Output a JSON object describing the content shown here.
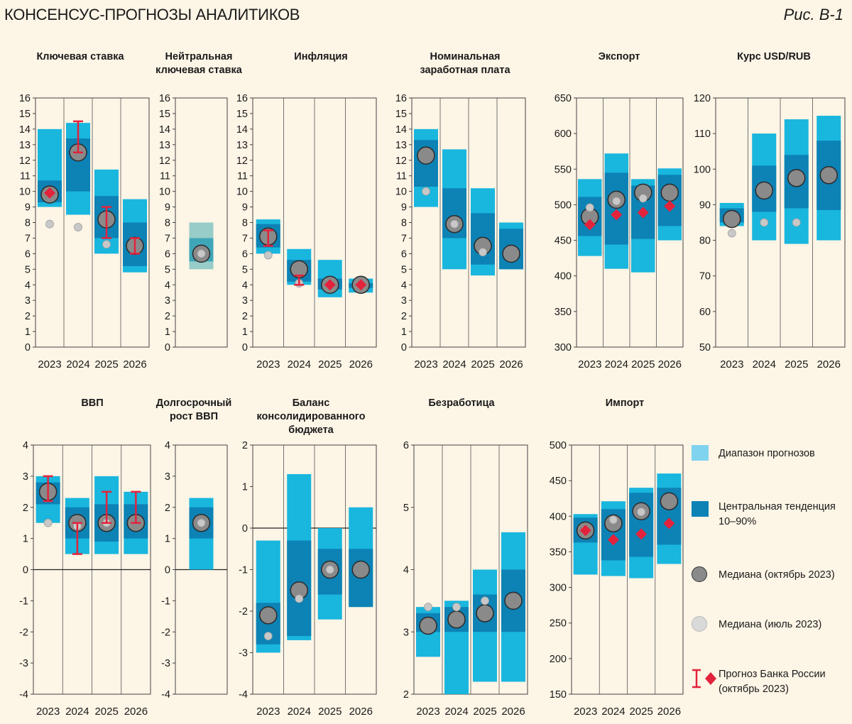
{
  "header": {
    "title": "КОНСЕНСУС-ПРОГНОЗЫ АНАЛИТИКОВ",
    "figure": "Рис. В-1"
  },
  "colors": {
    "background": "#fdf5e6",
    "range": "#19b6de",
    "central": "#0d82b5",
    "range_light": "#97ccc9",
    "central_light": "#3fa6b8",
    "median_oct": "#8a8a8a",
    "median_jul": "#c8c8c8",
    "cbr": "#e3223b"
  },
  "legend": {
    "range": "Диапазон прогнозов",
    "central": "Центральная тенденция 10–90%",
    "median_oct": "Медиана (октябрь 2023)",
    "median_jul": "Медиана (июль 2023)",
    "cbr": "Прогноз Банка России (октябрь 2023)"
  },
  "chart_data": [
    {
      "id": "key-rate",
      "type": "bar",
      "title": [
        "Ключевая ставка"
      ],
      "categories": [
        "2023",
        "2024",
        "2025",
        "2026"
      ],
      "ylim": [
        0,
        16
      ],
      "yticks": [
        "0",
        "1",
        "2",
        "3",
        "4",
        "5",
        "6",
        "7",
        "8",
        "9",
        "10",
        "11",
        "12",
        "13",
        "14",
        "15",
        "16"
      ],
      "range": [
        [
          9,
          14
        ],
        [
          8.5,
          14.4
        ],
        [
          6,
          11.4
        ],
        [
          4.8,
          9.5
        ]
      ],
      "central": [
        [
          9.3,
          10.7
        ],
        [
          10,
          13.4
        ],
        [
          7,
          9.7
        ],
        [
          5.2,
          8
        ]
      ],
      "median_oct": [
        9.8,
        12.5,
        8.2,
        6.5
      ],
      "median_jul": [
        7.9,
        7.7,
        6.6,
        null
      ],
      "cbr_point": [
        9.9,
        null,
        null,
        null
      ],
      "cbr_range": [
        null,
        [
          12.5,
          14.5
        ],
        [
          7,
          9
        ],
        [
          6,
          7
        ]
      ]
    },
    {
      "id": "neutral-rate",
      "type": "bar",
      "title": [
        "Нейтральная",
        "ключевая ставка"
      ],
      "categories": [
        ""
      ],
      "ylim": [
        0,
        16
      ],
      "yticks": [
        "0",
        "1",
        "2",
        "3",
        "4",
        "5",
        "6",
        "7",
        "8",
        "9",
        "10",
        "11",
        "12",
        "13",
        "14",
        "15",
        "16"
      ],
      "range": [
        [
          5,
          8
        ]
      ],
      "central": [
        [
          5.5,
          7
        ]
      ],
      "light": true,
      "median_oct": [
        6
      ],
      "median_jul": [
        6
      ]
    },
    {
      "id": "inflation",
      "type": "bar",
      "title": [
        "Инфляция"
      ],
      "categories": [
        "2023",
        "2024",
        "2025",
        "2026"
      ],
      "ylim": [
        0,
        16
      ],
      "yticks": [
        "0",
        "1",
        "2",
        "3",
        "4",
        "5",
        "6",
        "7",
        "8",
        "9",
        "10",
        "11",
        "12",
        "13",
        "14",
        "15",
        "16"
      ],
      "range": [
        [
          6,
          8.2
        ],
        [
          4,
          6.3
        ],
        [
          3.2,
          5.6
        ],
        [
          3.5,
          4.4
        ]
      ],
      "central": [
        [
          6.4,
          7.9
        ],
        [
          4.2,
          5.6
        ],
        [
          3.7,
          4.4
        ],
        [
          3.8,
          4.1
        ]
      ],
      "median_oct": [
        7.1,
        5,
        4,
        4
      ],
      "median_jul": [
        5.9,
        4.1,
        4,
        4
      ],
      "cbr_point": [
        null,
        null,
        4,
        4
      ],
      "cbr_range": [
        [
          6.5,
          7.5
        ],
        [
          4,
          4.6
        ],
        null,
        null
      ]
    },
    {
      "id": "nominal-wage",
      "type": "bar",
      "title": [
        "Номинальная",
        "заработная плата"
      ],
      "categories": [
        "2023",
        "2024",
        "2025",
        "2026"
      ],
      "ylim": [
        0,
        16
      ],
      "yticks": [
        "0",
        "1",
        "2",
        "3",
        "4",
        "5",
        "6",
        "7",
        "8",
        "9",
        "10",
        "11",
        "12",
        "13",
        "14",
        "15",
        "16"
      ],
      "range": [
        [
          9,
          14
        ],
        [
          5,
          12.7
        ],
        [
          4.6,
          10.2
        ],
        [
          5,
          8
        ]
      ],
      "central": [
        [
          10.3,
          13.3
        ],
        [
          7,
          10.2
        ],
        [
          5.3,
          8.6
        ],
        [
          5,
          7.6
        ]
      ],
      "median_oct": [
        12.3,
        7.9,
        6.5,
        6
      ],
      "median_jul": [
        10,
        7.9,
        6.1,
        null
      ]
    },
    {
      "id": "export",
      "type": "bar",
      "title": [
        "Экспорт"
      ],
      "categories": [
        "2023",
        "2024",
        "2025",
        "2026"
      ],
      "ylim": [
        300,
        650
      ],
      "yticks": [
        "300",
        "350",
        "400",
        "450",
        "500",
        "550",
        "600",
        "650"
      ],
      "range": [
        [
          428,
          536
        ],
        [
          410,
          572
        ],
        [
          405,
          536
        ],
        [
          450,
          551
        ]
      ],
      "central": [
        [
          456,
          511
        ],
        [
          444,
          545
        ],
        [
          452,
          527
        ],
        [
          470,
          542
        ]
      ],
      "median_oct": [
        483,
        507,
        517,
        517
      ],
      "median_jul": [
        496,
        505,
        509,
        null
      ],
      "cbr_point": [
        472,
        486,
        489,
        498
      ]
    },
    {
      "id": "usd-rub",
      "type": "bar",
      "title": [
        "Курс USD/RUB"
      ],
      "categories": [
        "2023",
        "2024",
        "2025",
        "2026"
      ],
      "ylim": [
        50,
        120
      ],
      "yticks": [
        "50",
        "60",
        "70",
        "80",
        "90",
        "100",
        "110",
        "120"
      ],
      "range": [
        [
          84,
          90.5
        ],
        [
          80,
          110
        ],
        [
          79,
          114
        ],
        [
          80,
          115
        ]
      ],
      "central": [
        [
          85,
          89
        ],
        [
          88,
          101
        ],
        [
          89,
          104
        ],
        [
          88.5,
          108
        ]
      ],
      "median_oct": [
        86,
        94,
        97.5,
        98.3
      ],
      "median_jul": [
        82,
        85,
        85,
        null
      ]
    },
    {
      "id": "gdp",
      "type": "bar",
      "title": [
        "ВВП"
      ],
      "categories": [
        "2023",
        "2024",
        "2025",
        "2026"
      ],
      "ylim": [
        -4,
        4
      ],
      "yticks": [
        "-4",
        "-3",
        "-2",
        "-1",
        "0",
        "1",
        "2",
        "3",
        "4"
      ],
      "range": [
        [
          1.5,
          3
        ],
        [
          0.5,
          2.3
        ],
        [
          0.5,
          3
        ],
        [
          0.5,
          2.5
        ]
      ],
      "central": [
        [
          2.1,
          2.8
        ],
        [
          1,
          2
        ],
        [
          0.9,
          2.1
        ],
        [
          1,
          2.1
        ]
      ],
      "median_oct": [
        2.5,
        1.5,
        1.5,
        1.5
      ],
      "median_jul": [
        1.5,
        1.4,
        1.5,
        null
      ],
      "cbr_range": [
        [
          2.2,
          3
        ],
        [
          0.5,
          1.5
        ],
        [
          1.5,
          2.5
        ],
        [
          1.5,
          2.5
        ]
      ]
    },
    {
      "id": "long-growth",
      "type": "bar",
      "title": [
        "Долгосрочный",
        "рост ВВП"
      ],
      "categories": [
        ""
      ],
      "ylim": [
        -4,
        4
      ],
      "yticks": [
        "-4",
        "-3",
        "-2",
        "-1",
        "0",
        "1",
        "2",
        "3",
        "4"
      ],
      "range": [
        [
          0,
          2.3
        ]
      ],
      "central": [
        [
          1,
          2
        ]
      ],
      "median_oct": [
        1.5
      ],
      "median_jul": [
        1.5
      ]
    },
    {
      "id": "budget",
      "type": "bar",
      "title": [
        "Баланс",
        "консолидированного",
        "бюджета"
      ],
      "categories": [
        "2023",
        "2024",
        "2025",
        "2026"
      ],
      "ylim": [
        -4,
        2
      ],
      "yticks": [
        "-4",
        "-3",
        "-2",
        "-1",
        "0",
        "1",
        "2"
      ],
      "range": [
        [
          -3,
          -0.3
        ],
        [
          -2.7,
          1.3
        ],
        [
          -2.2,
          0
        ],
        [
          -1.9,
          0.5
        ]
      ],
      "central": [
        [
          -2.8,
          -1.8
        ],
        [
          -2.6,
          -0.3
        ],
        [
          -1.6,
          -0.5
        ],
        [
          -1.9,
          -0.5
        ]
      ],
      "median_oct": [
        -2.1,
        -1.5,
        -1,
        -1
      ],
      "median_jul": [
        -2.6,
        -1.7,
        -1,
        null
      ]
    },
    {
      "id": "unemployment",
      "type": "bar",
      "title": [
        "Безработица"
      ],
      "categories": [
        "2023",
        "2024",
        "2025",
        "2026"
      ],
      "ylim": [
        2,
        6
      ],
      "yticks": [
        "2",
        "3",
        "4",
        "5",
        "6"
      ],
      "range": [
        [
          2.6,
          3.4
        ],
        [
          2,
          3.5
        ],
        [
          2.2,
          4
        ],
        [
          2.2,
          4.6
        ]
      ],
      "central": [
        [
          3,
          3.3
        ],
        [
          3,
          3.4
        ],
        [
          3,
          3.6
        ],
        [
          3,
          4
        ]
      ],
      "median_oct": [
        3.1,
        3.2,
        3.3,
        3.5
      ],
      "median_jul": [
        3.4,
        3.4,
        3.5,
        null
      ]
    },
    {
      "id": "import",
      "type": "bar",
      "title": [
        "Импорт"
      ],
      "categories": [
        "2023",
        "2024",
        "2025",
        "2026"
      ],
      "ylim": [
        150,
        500
      ],
      "yticks": [
        "150",
        "200",
        "250",
        "300",
        "350",
        "400",
        "450",
        "500"
      ],
      "range": [
        [
          318,
          403
        ],
        [
          316,
          421
        ],
        [
          313,
          440
        ],
        [
          333,
          460
        ]
      ],
      "central": [
        [
          363,
          398
        ],
        [
          338,
          410
        ],
        [
          343,
          433
        ],
        [
          360,
          440
        ]
      ],
      "median_oct": [
        380,
        390,
        407,
        421
      ],
      "median_jul": [
        380,
        395,
        406,
        null
      ],
      "cbr_point": [
        380,
        367,
        375,
        390
      ]
    }
  ]
}
